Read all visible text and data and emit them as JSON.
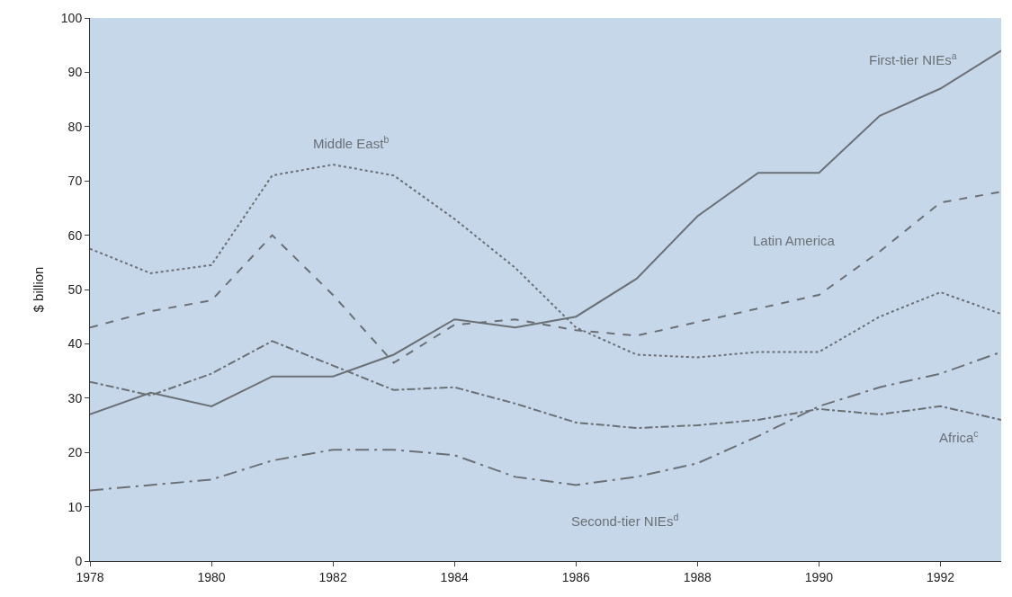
{
  "chart_data": {
    "type": "line",
    "ylabel": "$ billion",
    "x": [
      1978,
      1979,
      1980,
      1981,
      1982,
      1983,
      1984,
      1985,
      1986,
      1987,
      1988,
      1989,
      1990,
      1991,
      1992,
      1993
    ],
    "series": [
      {
        "name": "First-tier NIEs$^{a}$",
        "color": "#6b7075",
        "line_style": "solid",
        "values": [
          27,
          31,
          28.5,
          34,
          34,
          38,
          44.5,
          43,
          45,
          52,
          63.5,
          71.5,
          71.5,
          82,
          87,
          94
        ]
      },
      {
        "name": "Middle East$^{b}$",
        "color": "#6b7075",
        "line_style": "dotted",
        "values": [
          57.5,
          53,
          54.5,
          71,
          73,
          71,
          63,
          54,
          43,
          38,
          37.5,
          38.5,
          38.5,
          45,
          49.5,
          45.5
        ]
      },
      {
        "name": "Latin America",
        "color": "#6b7075",
        "line_style": "dashed",
        "values": [
          43,
          46,
          48,
          60,
          49,
          36.5,
          43.5,
          44.5,
          42.5,
          41.5,
          44,
          46.5,
          49,
          57,
          66,
          68
        ]
      },
      {
        "name": "Africa$^{c}$",
        "color": "#6b7075",
        "line_style": "dashdot",
        "values": [
          33,
          30.5,
          34.5,
          40.5,
          36,
          31.5,
          32,
          29,
          25.5,
          24.5,
          25,
          26,
          28,
          27,
          28.5,
          26
        ]
      },
      {
        "name": "Second-tier NIEs$^{d}$",
        "color": "#6b7075",
        "line_style": "longdashdot",
        "values": [
          13,
          14,
          15,
          18.5,
          20.5,
          20.5,
          19.5,
          15.5,
          14,
          15.5,
          18,
          23,
          28.5,
          32,
          34.5,
          38.5
        ]
      }
    ],
    "xlim": [
      1978,
      1993
    ],
    "xticks": [
      1978,
      1980,
      1982,
      1984,
      1986,
      1988,
      1990,
      1992
    ],
    "ylim": [
      0,
      100
    ],
    "yticks": [
      0,
      10,
      20,
      30,
      40,
      50,
      60,
      70,
      80,
      90,
      100
    ],
    "grid": false,
    "legend": false
  }
}
